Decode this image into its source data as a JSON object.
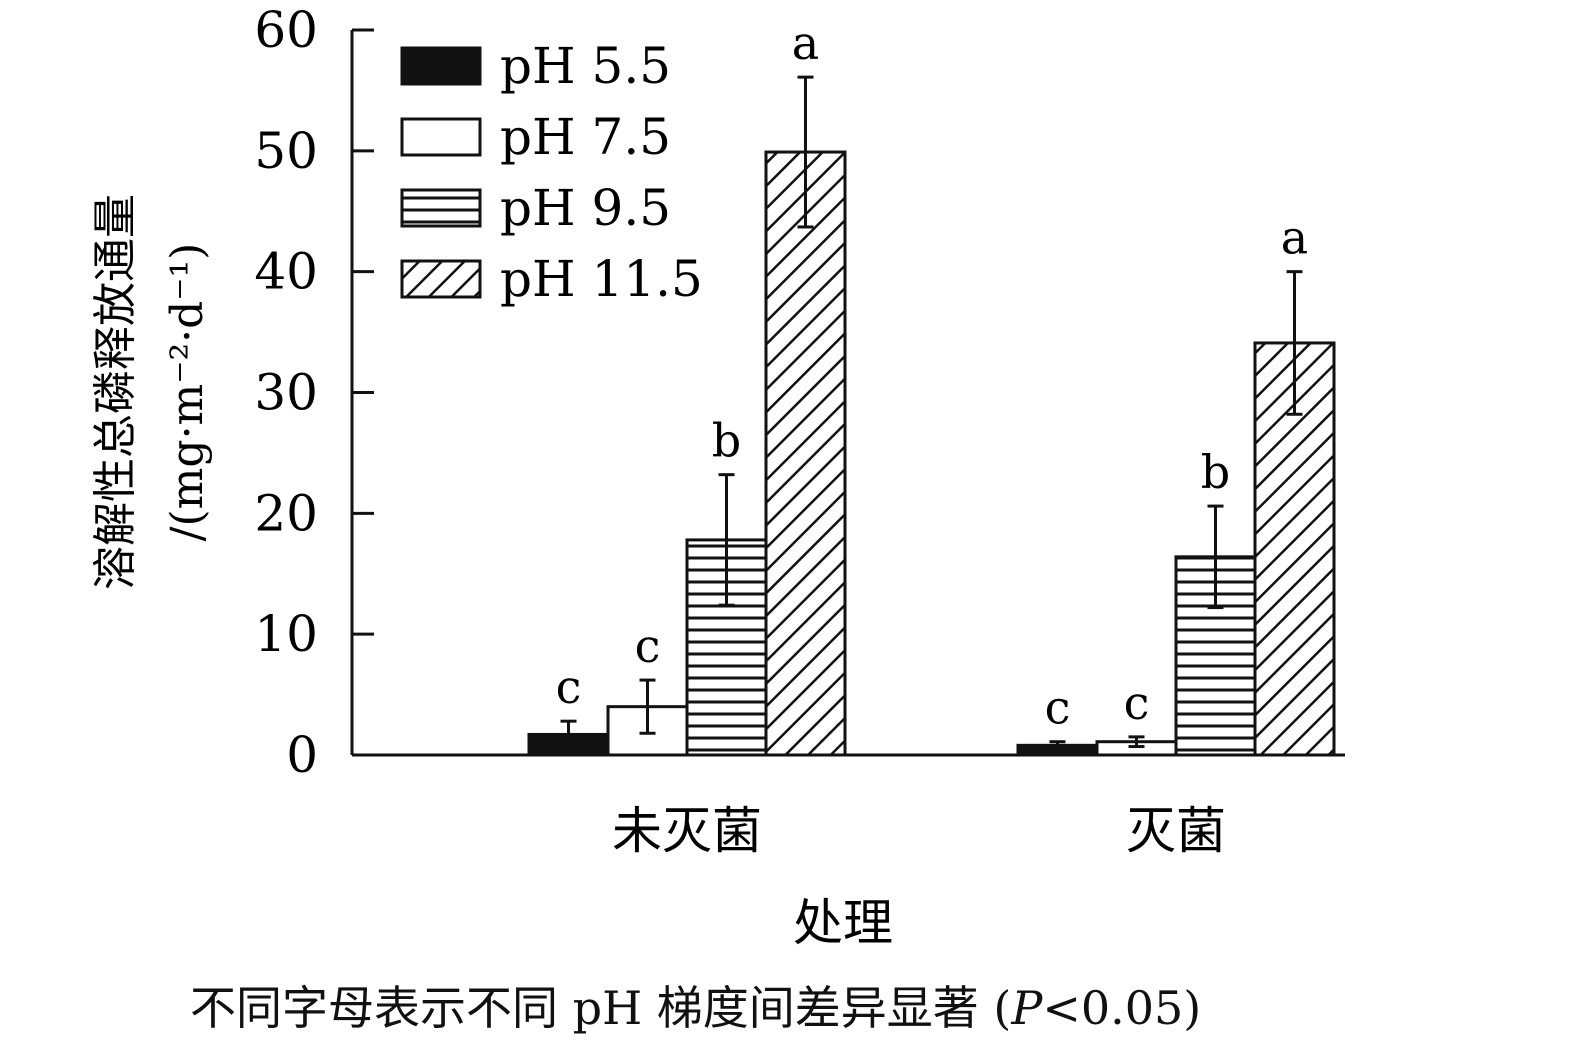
{
  "chart_data": {
    "type": "bar",
    "categories": [
      "未灭菌",
      "灭菌"
    ],
    "xlabel": "处理",
    "ylabel_line1": "溶解性总磷释放通量",
    "ylabel_line2": "/(mg·m⁻²·d⁻¹)",
    "ylim": [
      0,
      60
    ],
    "yticks": [
      0,
      10,
      20,
      30,
      40,
      50,
      60
    ],
    "grid": false,
    "legend_position": "top-left",
    "series": [
      {
        "name": "pH 5.5",
        "pattern": "solid-black",
        "values": [
          1.7,
          0.8
        ],
        "errors": [
          1.1,
          0.3
        ],
        "letters": [
          "c",
          "c"
        ]
      },
      {
        "name": "pH 7.5",
        "pattern": "white",
        "values": [
          4.0,
          1.1
        ],
        "errors": [
          2.2,
          0.4
        ],
        "letters": [
          "c",
          "c"
        ]
      },
      {
        "name": "pH 9.5",
        "pattern": "horizontal-lines",
        "values": [
          17.8,
          16.4
        ],
        "errors": [
          5.4,
          4.2
        ],
        "letters": [
          "b",
          "b"
        ]
      },
      {
        "name": "pH 11.5",
        "pattern": "diagonal-lines",
        "values": [
          49.9,
          34.1
        ],
        "errors": [
          6.2,
          5.9
        ],
        "letters": [
          "a",
          "a"
        ]
      }
    ]
  },
  "note": {
    "text_main": "不同字母表示不同 pH 梯度间差异显著 (",
    "p_symbol": "P",
    "text_end": "<0.05)"
  }
}
